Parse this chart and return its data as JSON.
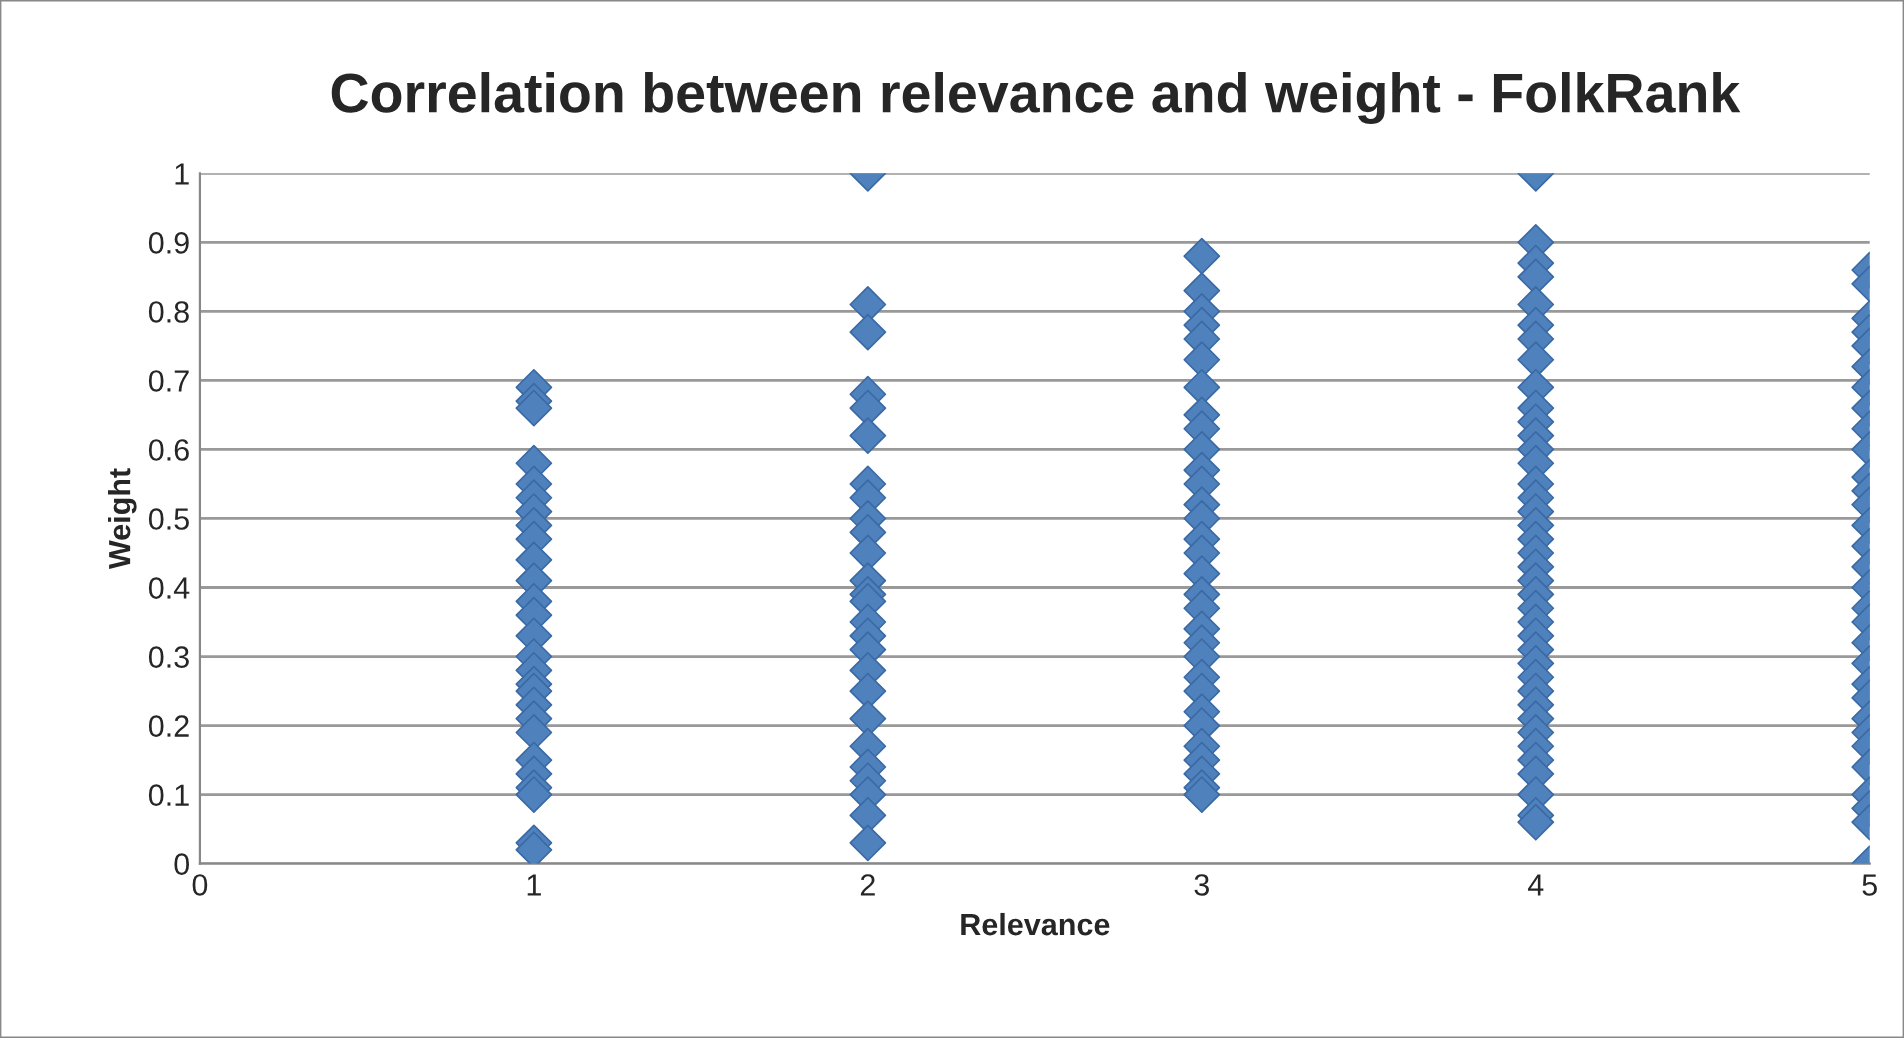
{
  "chart_data": {
    "type": "scatter",
    "title": "Correlation between relevance and weight - FolkRank",
    "xlabel": "Relevance",
    "ylabel": "Weight",
    "series": [
      {
        "color": "#4f81bd",
        "x": [
          1,
          1,
          1,
          1,
          1,
          1,
          1,
          1,
          1,
          1,
          1,
          1,
          1,
          1,
          1,
          1,
          1,
          1,
          1,
          1,
          1,
          1,
          1,
          1,
          1,
          1,
          1,
          2,
          2,
          2,
          2,
          2,
          2,
          2,
          2,
          2,
          2,
          2,
          2,
          2,
          2,
          2,
          2,
          2,
          2,
          2,
          2,
          2,
          2,
          2,
          2,
          2,
          2,
          3,
          3,
          3,
          3,
          3,
          3,
          3,
          3,
          3,
          3,
          3,
          3,
          3,
          3,
          3,
          3,
          3,
          3,
          3,
          3,
          3,
          3,
          3,
          3,
          3,
          3,
          3,
          3,
          3,
          3,
          3,
          4,
          4,
          4,
          4,
          4,
          4,
          4,
          4,
          4,
          4,
          4,
          4,
          4,
          4,
          4,
          4,
          4,
          4,
          4,
          4,
          4,
          4,
          4,
          4,
          4,
          4,
          4,
          4,
          4,
          4,
          4,
          4,
          4,
          4,
          4,
          4,
          4,
          4,
          4,
          5,
          5,
          5,
          5,
          5,
          5,
          5,
          5,
          5,
          5,
          5,
          5,
          5,
          5,
          5,
          5,
          5,
          5,
          5,
          5,
          5,
          5,
          5,
          5,
          5,
          5,
          5,
          5,
          5,
          5,
          5
        ],
        "values": [
          0.69,
          0.67,
          0.66,
          0.58,
          0.55,
          0.53,
          0.51,
          0.49,
          0.47,
          0.44,
          0.41,
          0.38,
          0.36,
          0.33,
          0.3,
          0.28,
          0.26,
          0.25,
          0.23,
          0.21,
          0.19,
          0.15,
          0.13,
          0.11,
          0.1,
          0.03,
          0.02,
          1.0,
          0.81,
          0.77,
          0.68,
          0.66,
          0.62,
          0.55,
          0.53,
          0.5,
          0.48,
          0.45,
          0.41,
          0.39,
          0.38,
          0.35,
          0.33,
          0.31,
          0.28,
          0.25,
          0.21,
          0.17,
          0.14,
          0.12,
          0.1,
          0.07,
          0.03,
          0.88,
          0.83,
          0.8,
          0.78,
          0.76,
          0.73,
          0.69,
          0.65,
          0.63,
          0.6,
          0.57,
          0.55,
          0.52,
          0.5,
          0.47,
          0.45,
          0.42,
          0.39,
          0.37,
          0.34,
          0.32,
          0.3,
          0.27,
          0.25,
          0.22,
          0.2,
          0.17,
          0.15,
          0.13,
          0.11,
          0.1,
          1.0,
          0.9,
          0.87,
          0.85,
          0.81,
          0.78,
          0.76,
          0.73,
          0.69,
          0.66,
          0.64,
          0.62,
          0.6,
          0.58,
          0.55,
          0.53,
          0.51,
          0.49,
          0.47,
          0.45,
          0.43,
          0.41,
          0.39,
          0.37,
          0.35,
          0.33,
          0.31,
          0.29,
          0.27,
          0.25,
          0.23,
          0.21,
          0.19,
          0.17,
          0.15,
          0.13,
          0.1,
          0.07,
          0.06,
          0.86,
          0.84,
          0.79,
          0.77,
          0.75,
          0.72,
          0.69,
          0.66,
          0.63,
          0.6,
          0.56,
          0.54,
          0.52,
          0.49,
          0.46,
          0.43,
          0.4,
          0.37,
          0.35,
          0.32,
          0.29,
          0.26,
          0.24,
          0.21,
          0.19,
          0.17,
          0.14,
          0.1,
          0.08,
          0.06,
          0.0
        ]
      }
    ],
    "marker": "diamond",
    "grid": "y",
    "legend": false,
    "xlim": [
      0,
      5
    ],
    "xticks": [
      0,
      1,
      2,
      3,
      4,
      5
    ],
    "ylim": [
      0,
      1
    ],
    "yticks": [
      0,
      0.1,
      0.2,
      0.3,
      0.4,
      0.5,
      0.6,
      0.7,
      0.8,
      0.9,
      1
    ]
  }
}
